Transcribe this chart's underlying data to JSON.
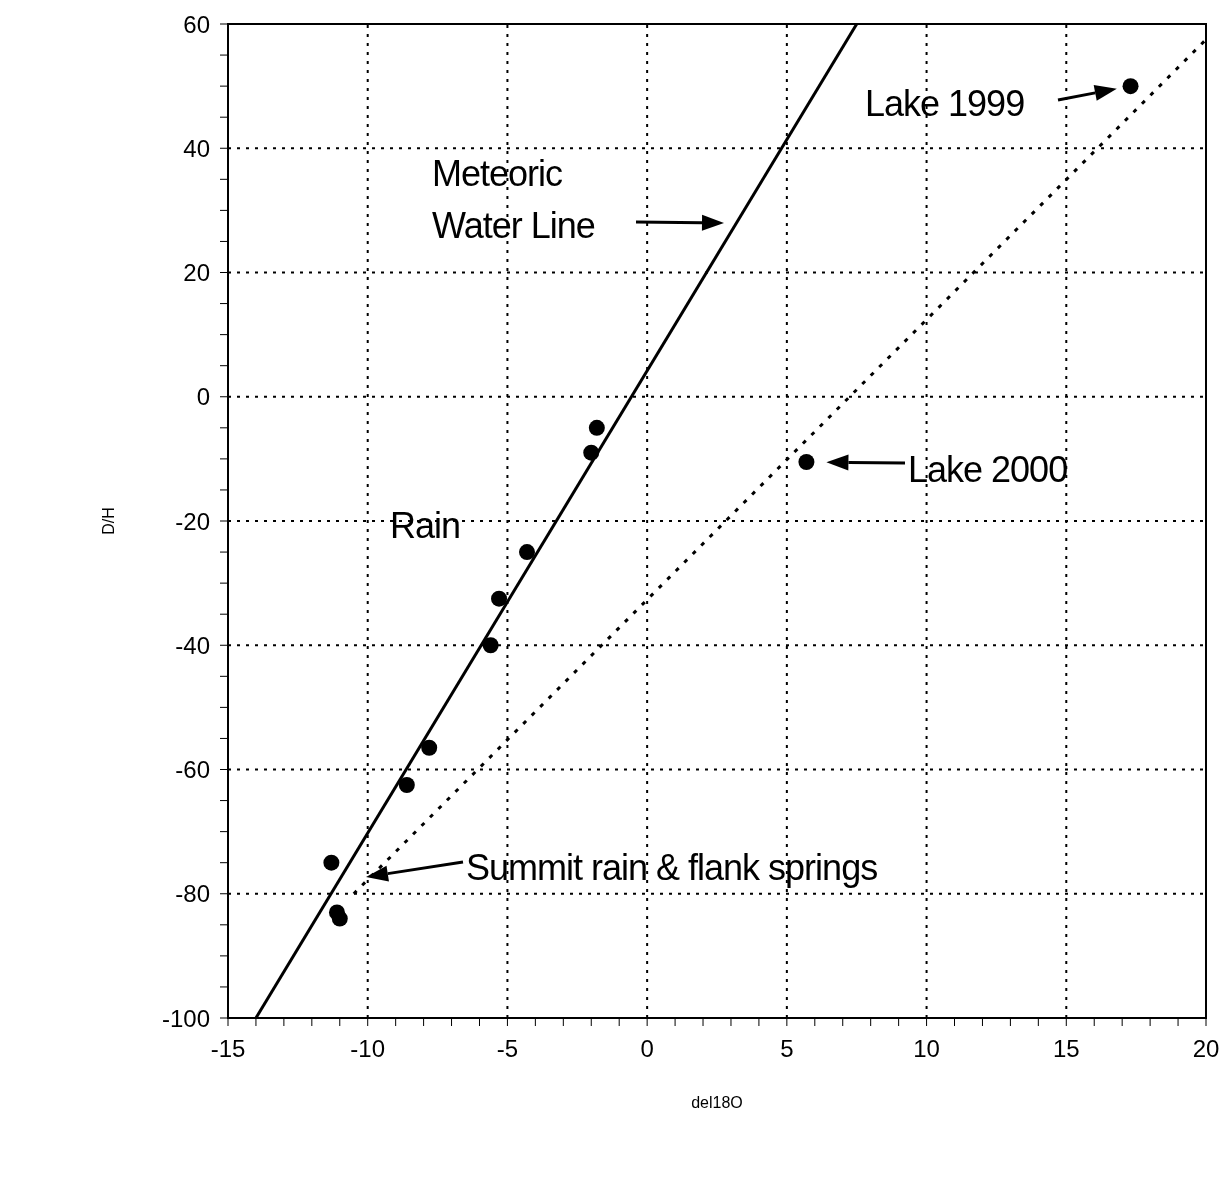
{
  "chart_data": {
    "type": "scatter",
    "xlabel": "del18O",
    "ylabel": "D/H",
    "xlim": [
      -15,
      20
    ],
    "ylim": [
      -100,
      60
    ],
    "xticks": [
      -15,
      {
        "value": -14,
        "label": null
      },
      {
        "value": -13,
        "label": null
      },
      {
        "value": -12,
        "label": null
      },
      {
        "value": -11,
        "label": null
      },
      -10,
      {
        "value": -9,
        "label": null
      },
      {
        "value": -8,
        "label": null
      },
      {
        "value": -7,
        "label": null
      },
      {
        "value": -6,
        "label": null
      },
      -5,
      {
        "value": -4,
        "label": null
      },
      {
        "value": -3,
        "label": null
      },
      {
        "value": -2,
        "label": null
      },
      {
        "value": -1,
        "label": null
      },
      0,
      {
        "value": 1,
        "label": null
      },
      {
        "value": 2,
        "label": null
      },
      {
        "value": 3,
        "label": null
      },
      {
        "value": 4,
        "label": null
      },
      5,
      {
        "value": 6,
        "label": null
      },
      {
        "value": 7,
        "label": null
      },
      {
        "value": 8,
        "label": null
      },
      {
        "value": 9,
        "label": null
      },
      10,
      {
        "value": 11,
        "label": null
      },
      {
        "value": 12,
        "label": null
      },
      {
        "value": 13,
        "label": null
      },
      {
        "value": 14,
        "label": null
      },
      15,
      {
        "value": 16,
        "label": null
      },
      {
        "value": 17,
        "label": null
      },
      {
        "value": 18,
        "label": null
      },
      {
        "value": 19,
        "label": null
      },
      20
    ],
    "yticks": [
      -100,
      {
        "value": -95,
        "label": null
      },
      {
        "value": -90,
        "label": null
      },
      {
        "value": -85,
        "label": null
      },
      -80,
      {
        "value": -75,
        "label": null
      },
      {
        "value": -70,
        "label": null
      },
      {
        "value": -65,
        "label": null
      },
      -60,
      {
        "value": -55,
        "label": null
      },
      {
        "value": -50,
        "label": null
      },
      {
        "value": -45,
        "label": null
      },
      -40,
      {
        "value": -35,
        "label": null
      },
      {
        "value": -30,
        "label": null
      },
      {
        "value": -25,
        "label": null
      },
      -20,
      {
        "value": -15,
        "label": null
      },
      {
        "value": -10,
        "label": null
      },
      {
        "value": -5,
        "label": null
      },
      0,
      {
        "value": 5,
        "label": null
      },
      {
        "value": 10,
        "label": null
      },
      {
        "value": 15,
        "label": null
      },
      20,
      {
        "value": 25,
        "label": null
      },
      {
        "value": 30,
        "label": null
      },
      {
        "value": 35,
        "label": null
      },
      40,
      {
        "value": 45,
        "label": null
      },
      {
        "value": 50,
        "label": null
      },
      {
        "value": 55,
        "label": null
      },
      60
    ],
    "grid": true,
    "marker": "circle",
    "series": [
      {
        "color": "#000000",
        "x": [
          -11.3,
          -11.1,
          -11.0,
          -8.6,
          -7.8,
          -5.6,
          -5.3,
          -4.3,
          -2.0,
          -1.8,
          5.7,
          17.3
        ],
        "values": [
          -75,
          -83,
          -84,
          -62.5,
          -56.5,
          -40,
          -32.5,
          -25,
          -9,
          -5,
          -10.5,
          50
        ]
      },
      {
        "type": "line",
        "color": "#000000",
        "line_style": "solid",
        "marker": "none",
        "x": [
          -14,
          7.5
        ],
        "values": [
          -100,
          60
        ]
      },
      {
        "type": "line",
        "color": "#000000",
        "line_style": "dotted",
        "marker": "none",
        "x": [
          -10.5,
          20
        ],
        "values": [
          -80,
          57.5
        ]
      }
    ],
    "annotations": [
      "Meteoric Water Line",
      {
        "text": "Lake 1999",
        "x": 17.3,
        "y": 50
      },
      {
        "text": "Lake 2000",
        "x": 5.7,
        "y": -10.5
      },
      "Summit rain & flank springs",
      "Rain"
    ]
  }
}
